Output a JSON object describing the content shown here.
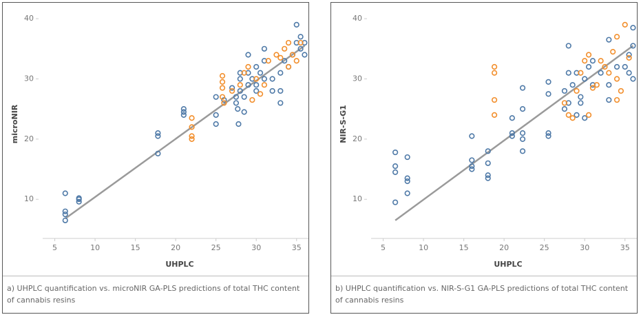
{
  "chart_data": [
    {
      "type": "scatter",
      "x_label": "UHPLC",
      "y_label": "microNIR",
      "caption": "a) UHPLC quantification vs. microNIR GA-PLS predictions of total THC content of cannabis resins",
      "xlim": [
        3.5,
        37.5
      ],
      "ylim": [
        3.5,
        41.5
      ],
      "xticks": [
        5,
        10,
        15,
        20,
        25,
        30,
        35
      ],
      "yticks": [
        10,
        20,
        30,
        40
      ],
      "series": [
        {
          "color": "#4e79a7",
          "x": [
            6.3,
            6.3,
            6.3,
            6.3,
            8,
            8,
            8,
            17.8,
            17.8,
            17.8,
            21,
            21,
            21,
            25,
            25,
            25,
            26,
            27.5,
            27.5,
            27.7,
            27.8,
            28,
            28,
            28,
            28.5,
            28.5,
            29,
            29,
            29.5,
            30,
            30,
            30,
            30.5,
            31,
            31,
            31,
            32,
            32,
            33,
            33,
            33,
            34,
            35,
            35,
            35.5,
            36,
            36,
            35.5,
            34.5,
            33.5,
            29,
            27
          ],
          "values": [
            11,
            8,
            7.5,
            6.5,
            10,
            9.6,
            10.2,
            21,
            20.5,
            17.6,
            25,
            24,
            24.5,
            27,
            22.5,
            24,
            26.5,
            27,
            26,
            25,
            22.5,
            30,
            28,
            31,
            27,
            24.5,
            29,
            31,
            30,
            32,
            29,
            28,
            31,
            33,
            35,
            30,
            30,
            28,
            28,
            26,
            31,
            32,
            39,
            36,
            35,
            36,
            34,
            37,
            34,
            33,
            34,
            28.5
          ]
        },
        {
          "color": "#f28e2b",
          "x": [
            22,
            22,
            22,
            22,
            25.8,
            25.8,
            25.8,
            25.8,
            28,
            28.5,
            29,
            29.5,
            30,
            30.5,
            31,
            31.5,
            32.5,
            33,
            33.5,
            34,
            34,
            34.5,
            35,
            35.5,
            27,
            26
          ],
          "values": [
            23.5,
            22,
            20.5,
            20,
            30.5,
            29.5,
            28.5,
            27,
            29,
            31,
            32,
            26.5,
            30,
            27.5,
            29,
            33,
            34,
            33.5,
            35,
            36,
            32,
            34,
            33,
            36,
            28,
            26
          ]
        }
      ],
      "trend": {
        "color": "#9a9a9a",
        "x": [
          6.3,
          36
        ],
        "values": [
          6.8,
          35.5
        ]
      }
    },
    {
      "type": "scatter",
      "x_label": "UHPLC",
      "y_label": "NIR-S-G1",
      "caption": "b) UHPLC quantification vs. NIR-S-G1 GA-PLS predictions of total THC content of cannabis resins",
      "xlim": [
        3.5,
        37.5
      ],
      "ylim": [
        3.5,
        41.5
      ],
      "xticks": [
        5,
        10,
        15,
        20,
        25,
        30,
        35
      ],
      "yticks": [
        10,
        20,
        30,
        40
      ],
      "series": [
        {
          "color": "#4e79a7",
          "x": [
            6.5,
            6.5,
            6.5,
            6.5,
            8,
            8,
            8,
            8,
            16,
            16,
            16,
            16,
            18,
            18,
            18,
            18,
            21,
            21,
            21,
            22.3,
            22.3,
            22.3,
            22.3,
            22.3,
            25.5,
            25.5,
            25.5,
            25.5,
            27.5,
            27.5,
            28,
            28,
            28,
            28.5,
            29,
            29,
            29.5,
            30,
            30,
            30.5,
            31,
            31,
            32,
            33,
            33,
            33,
            34,
            35,
            35.5,
            36,
            36,
            36,
            35.5,
            29.5
          ],
          "values": [
            17.8,
            15.5,
            14.5,
            9.5,
            17,
            13.5,
            13,
            11,
            20.5,
            16.5,
            15.5,
            15,
            18,
            16,
            14,
            13.5,
            23.5,
            21,
            20.5,
            28.5,
            25,
            21,
            20,
            18,
            29.5,
            27.5,
            21,
            20.5,
            28,
            25,
            35.5,
            31,
            26,
            29,
            31,
            24,
            27,
            30,
            23.5,
            32,
            29,
            33,
            31,
            36.5,
            26.5,
            29,
            32,
            32,
            34,
            38.5,
            30,
            35.5,
            31,
            26
          ]
        },
        {
          "color": "#f28e2b",
          "x": [
            18.8,
            18.8,
            18.8,
            18.8,
            27.5,
            28,
            28.5,
            29,
            29.5,
            30,
            30.5,
            30.5,
            31,
            31.5,
            32,
            33,
            33.5,
            34,
            34,
            34.5,
            35,
            35.5,
            34,
            32.5
          ],
          "values": [
            32,
            31,
            26.5,
            24,
            26,
            24,
            23.5,
            28,
            31,
            33,
            34,
            24,
            28.5,
            29,
            33,
            31,
            34.5,
            37,
            30,
            28,
            39,
            33.5,
            26.5,
            32
          ]
        }
      ],
      "trend": {
        "color": "#9a9a9a",
        "x": [
          6.5,
          36
        ],
        "values": [
          6.5,
          35.5
        ]
      }
    }
  ]
}
